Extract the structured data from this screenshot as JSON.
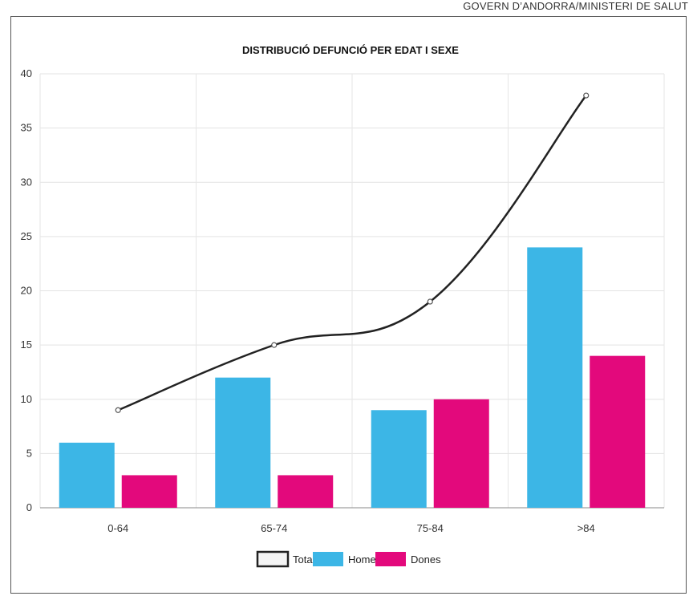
{
  "header": {
    "source": "GOVERN D’ANDORRA/MINISTERI DE SALUT"
  },
  "chart_data": {
    "type": "bar",
    "title": "DISTRIBUCIÓ DEFUNCIÓ PER EDAT I SEXE",
    "categories": [
      "0-64",
      "65-74",
      "75-84",
      ">84"
    ],
    "series": [
      {
        "name": "Homes",
        "type": "bar",
        "color": "#3cb6e6",
        "values": [
          6,
          12,
          9,
          24
        ]
      },
      {
        "name": "Dones",
        "type": "bar",
        "color": "#e3097c",
        "values": [
          3,
          3,
          10,
          14
        ]
      },
      {
        "name": "Total",
        "type": "line",
        "color": "#222222",
        "values": [
          9,
          15,
          19,
          38
        ]
      }
    ],
    "ylim": [
      0,
      40
    ],
    "yticks": [
      0,
      5,
      10,
      15,
      20,
      25,
      30,
      35,
      40
    ],
    "grid": true,
    "legend_position": "bottom-center",
    "xlabel": "",
    "ylabel": ""
  }
}
